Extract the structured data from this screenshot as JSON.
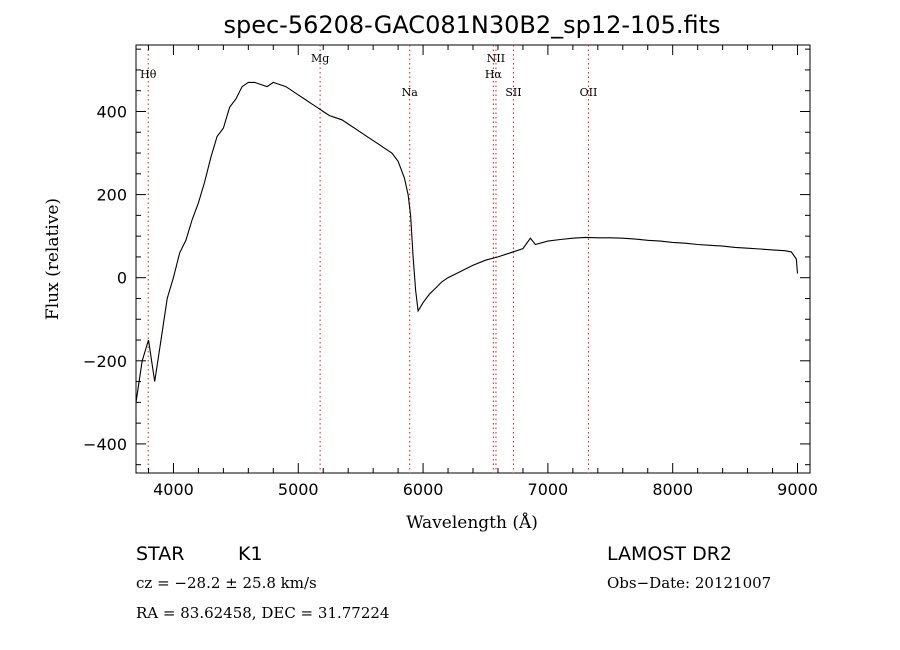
{
  "chart_data": {
    "type": "line",
    "title": "spec-56208-GAC081N30B2_sp12-105.fits",
    "xlabel": "Wavelength (Å)",
    "ylabel": "Flux (relative)",
    "xlim": [
      3700,
      9100
    ],
    "ylim": [
      -470,
      560
    ],
    "xticks": [
      4000,
      5000,
      6000,
      7000,
      8000,
      9000
    ],
    "yticks": [
      -400,
      -200,
      0,
      200,
      400
    ],
    "grid": false,
    "reference_lines": [
      {
        "label": "Hθ",
        "x": 3798
      },
      {
        "label": "Mg",
        "x": 5175
      },
      {
        "label": "Na",
        "x": 5893
      },
      {
        "label": "NII",
        "x": 6584
      },
      {
        "label": "Hα",
        "x": 6563
      },
      {
        "label": "SII",
        "x": 6724
      },
      {
        "label": "OII",
        "x": 7325
      }
    ],
    "series": [
      {
        "x": [
          3700,
          3750,
          3800,
          3850,
          3900,
          3950,
          4000,
          4050,
          4100,
          4150,
          4200,
          4250,
          4300,
          4350,
          4400,
          4450,
          4500,
          4550,
          4600,
          4650,
          4700,
          4750,
          4800,
          4850,
          4900,
          4950,
          5000,
          5050,
          5100,
          5150,
          5200,
          5250,
          5300,
          5350,
          5400,
          5450,
          5500,
          5550,
          5600,
          5650,
          5700,
          5750,
          5800,
          5850,
          5880,
          5900,
          5920,
          5940,
          5960,
          5980,
          6000,
          6050,
          6100,
          6150,
          6200,
          6300,
          6400,
          6500,
          6600,
          6700,
          6800,
          6860,
          6900,
          7000,
          7100,
          7200,
          7300,
          7400,
          7500,
          7600,
          7700,
          7800,
          7900,
          8000,
          8100,
          8200,
          8300,
          8400,
          8500,
          8600,
          8700,
          8800,
          8900,
          8950,
          8990,
          9000
        ],
        "values": [
          -300,
          -200,
          -150,
          -250,
          -150,
          -50,
          0,
          60,
          90,
          140,
          180,
          230,
          290,
          340,
          360,
          410,
          430,
          460,
          470,
          470,
          465,
          460,
          470,
          465,
          460,
          450,
          440,
          430,
          420,
          410,
          400,
          390,
          385,
          380,
          370,
          360,
          350,
          340,
          330,
          320,
          310,
          300,
          280,
          240,
          200,
          150,
          50,
          -30,
          -80,
          -70,
          -60,
          -40,
          -25,
          -10,
          0,
          15,
          30,
          42,
          50,
          60,
          70,
          95,
          80,
          88,
          92,
          95,
          97,
          96,
          96,
          95,
          93,
          90,
          88,
          85,
          83,
          80,
          78,
          76,
          73,
          71,
          69,
          67,
          65,
          62,
          45,
          10
        ]
      }
    ]
  },
  "info": {
    "object_class": "STAR",
    "subclass": "K1",
    "survey": "LAMOST DR2",
    "redshift": "cz = −28.2 ± 25.8 km/s",
    "obs_date": "Obs−Date: 20121007",
    "coords": "RA =  83.62458, DEC =  31.77224"
  }
}
